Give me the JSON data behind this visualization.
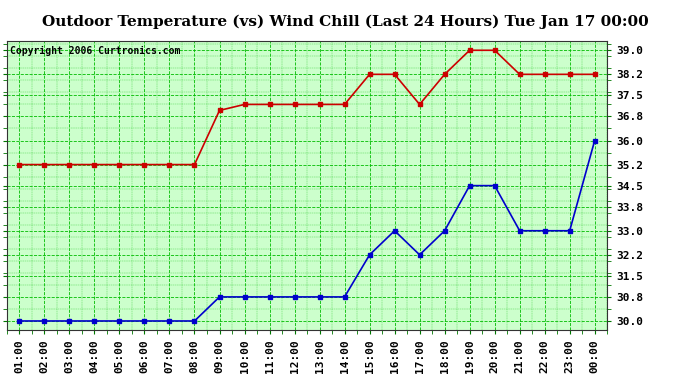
{
  "title": "Outdoor Temperature (vs) Wind Chill (Last 24 Hours) Tue Jan 17 00:00",
  "copyright": "Copyright 2006 Curtronics.com",
  "x_labels": [
    "01:00",
    "02:00",
    "03:00",
    "04:00",
    "05:00",
    "06:00",
    "07:00",
    "08:00",
    "09:00",
    "10:00",
    "11:00",
    "12:00",
    "13:00",
    "14:00",
    "15:00",
    "16:00",
    "17:00",
    "18:00",
    "19:00",
    "20:00",
    "21:00",
    "22:00",
    "23:00",
    "00:00"
  ],
  "outdoor_temp": [
    35.2,
    35.2,
    35.2,
    35.2,
    35.2,
    35.2,
    35.2,
    35.2,
    37.0,
    37.2,
    37.2,
    37.2,
    37.2,
    37.2,
    38.2,
    38.2,
    37.2,
    38.2,
    39.0,
    39.0,
    38.2,
    38.2,
    38.2,
    38.2
  ],
  "wind_chill": [
    30.0,
    30.0,
    30.0,
    30.0,
    30.0,
    30.0,
    30.0,
    30.0,
    30.8,
    30.8,
    30.8,
    30.8,
    30.8,
    30.8,
    32.2,
    33.0,
    32.2,
    33.0,
    34.5,
    34.5,
    33.0,
    33.0,
    33.0,
    36.0
  ],
  "temp_color": "#cc0000",
  "chill_color": "#0000cc",
  "bg_color": "#ffffff",
  "plot_bg_color": "#ccffcc",
  "grid_color": "#00bb00",
  "y_min": 29.7,
  "y_max": 39.3,
  "y_ticks": [
    30.0,
    30.8,
    31.5,
    32.2,
    33.0,
    33.8,
    34.5,
    35.2,
    36.0,
    36.8,
    37.5,
    38.2,
    39.0
  ],
  "title_fontsize": 11,
  "tick_fontsize": 8,
  "copyright_fontsize": 7
}
